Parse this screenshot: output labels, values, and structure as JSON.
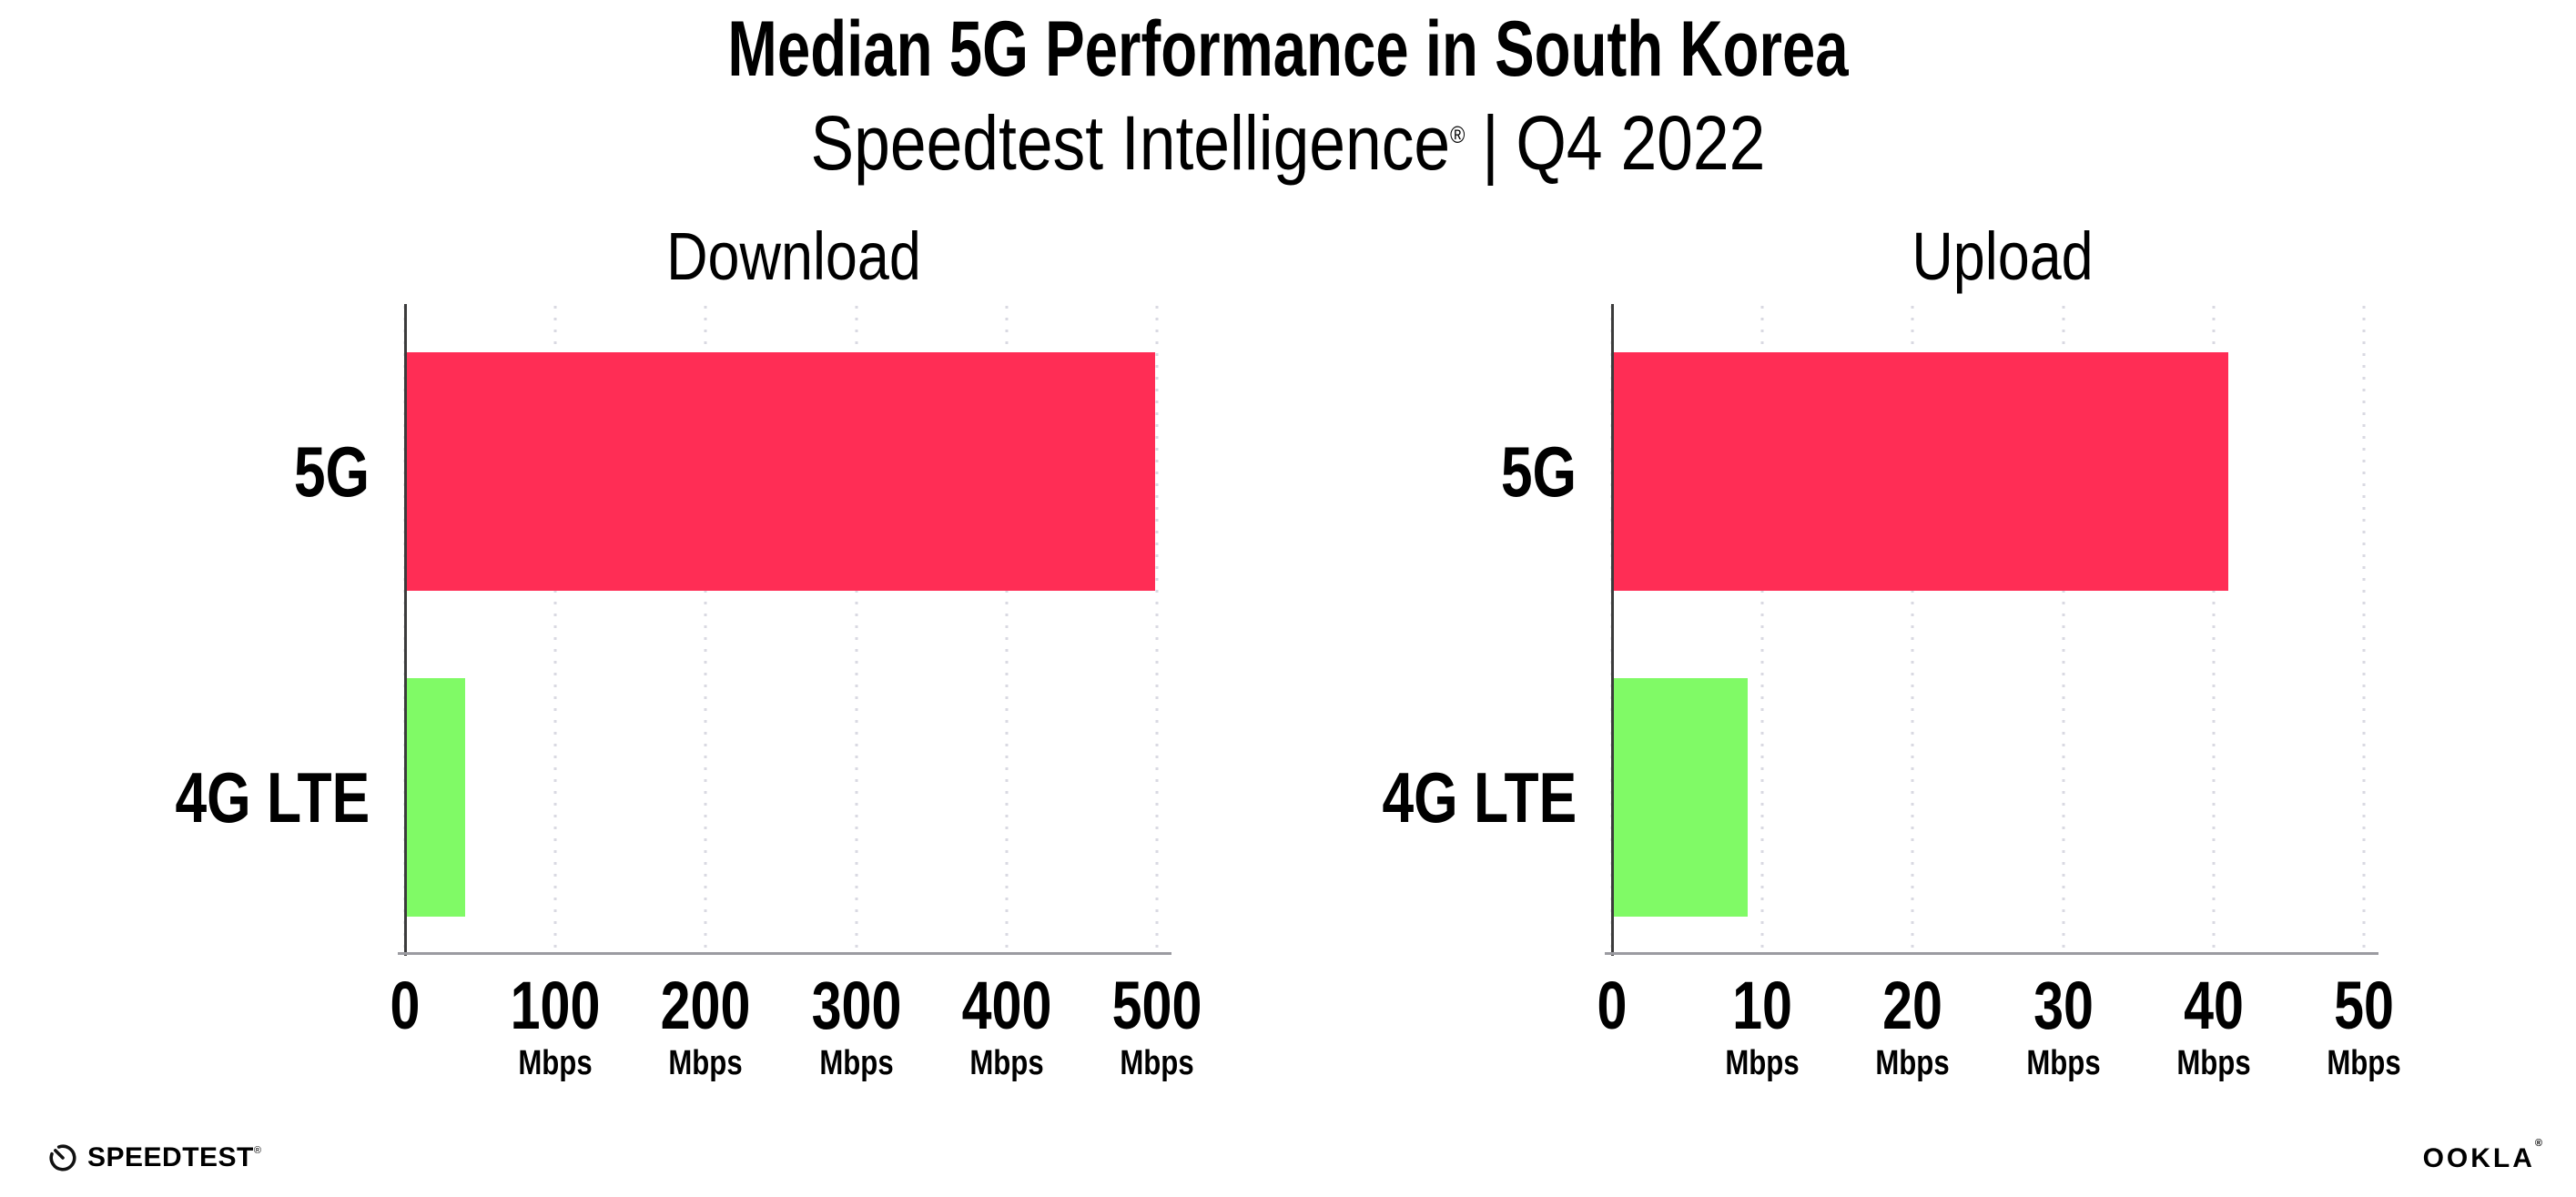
{
  "header": {
    "title": "Median 5G Performance in South Korea",
    "subtitle_brand": "Speedtest Intelligence",
    "subtitle_reg": "®",
    "subtitle_sep": "|",
    "subtitle_period": "Q4 2022"
  },
  "colors": {
    "bar_5g": "#ff2d55",
    "bar_4g_lte": "#80fa66",
    "gridline": "#d9d9e2",
    "y_axis": "#3b3b3b",
    "x_axis": "#9b9ba1",
    "text": "#000000",
    "background": "#ffffff"
  },
  "chart_data": [
    {
      "type": "bar",
      "orientation": "horizontal",
      "title": "Download",
      "categories": [
        "5G",
        "4G LTE"
      ],
      "values": [
        499,
        40
      ],
      "unit": "Mbps",
      "xlim": [
        0,
        500
      ],
      "xticks": [
        0,
        100,
        200,
        300,
        400,
        500
      ],
      "grid": "vertical-dotted",
      "legend": "none",
      "bar_colors": [
        "#ff2d55",
        "#80fa66"
      ]
    },
    {
      "type": "bar",
      "orientation": "horizontal",
      "title": "Upload",
      "categories": [
        "5G",
        "4G LTE"
      ],
      "values": [
        41,
        9
      ],
      "unit": "Mbps",
      "xlim": [
        0,
        50
      ],
      "xticks": [
        0,
        10,
        20,
        30,
        40,
        50
      ],
      "grid": "vertical-dotted",
      "legend": "none",
      "bar_colors": [
        "#ff2d55",
        "#80fa66"
      ]
    }
  ],
  "footer": {
    "speedtest_label": "SPEEDTEST",
    "speedtest_mark": "®",
    "ookla_label": "OOKLA",
    "ookla_mark": "®"
  }
}
